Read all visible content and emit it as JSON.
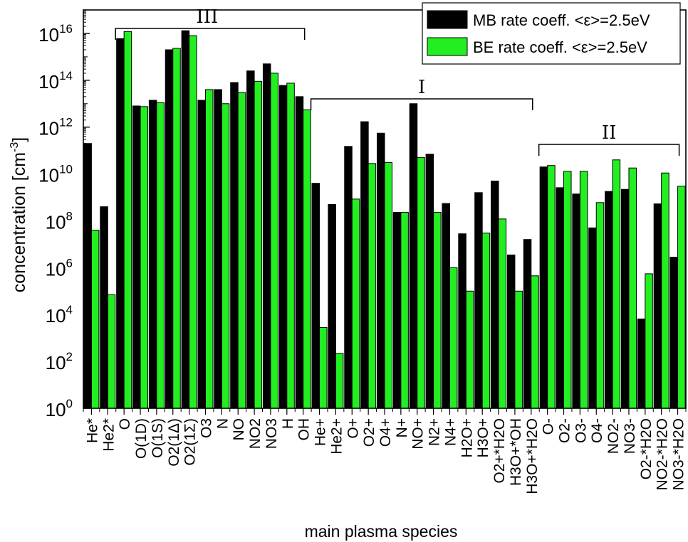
{
  "chart_data": {
    "type": "bar",
    "title": "",
    "xlabel": "main plasma species",
    "ylabel": "concentration [cm^-3]",
    "ylabel_parts": {
      "main": "concentration [cm",
      "sup": "-3",
      "tail": "]"
    },
    "yscale": "log",
    "ylim": [
      1,
      1e+17
    ],
    "ytick_exponents": [
      0,
      2,
      4,
      6,
      8,
      10,
      12,
      14,
      16
    ],
    "ytick_base": "10",
    "categories": [
      "He*",
      "He2*",
      "O",
      "O(1D)",
      "O(1S)",
      "O2(1Δ)",
      "O2(1Σ)",
      "O3",
      "N",
      "NO",
      "NO2",
      "NO3",
      "H",
      "OH",
      "He+",
      "He2+",
      "O+",
      "O2+",
      "O4+",
      "N+",
      "NO+",
      "N2+",
      "N4+",
      "H2O+",
      "H3O+",
      "O2+*H2O",
      "H3O+*OH",
      "H3O+*H2O",
      "O-",
      "O2-",
      "O3-",
      "O4-",
      "NO2-",
      "NO3-",
      "O2-*H2O",
      "NO2-*H2O",
      "NO3-*H2O"
    ],
    "series": [
      {
        "name": "MB rate coeff. <ε>=2.5eV",
        "color": "#000000",
        "values": [
          200000000000.0,
          400000000.0,
          6000000000000000.0,
          8000000000000.0,
          14000000000000.0,
          2000000000000000.0,
          1.3e+16,
          14000000000000.0,
          40000000000000.0,
          80000000000000.0,
          250000000000000.0,
          500000000000000.0,
          60000000000000.0,
          20000000000000.0,
          4000000000.0,
          500000000.0,
          150000000000.0,
          1700000000000.0,
          550000000000.0,
          230000000.0,
          10000000000000.0,
          70000000000.0,
          550000000.0,
          28000000.0,
          1600000000.0,
          5000000000.0,
          3500000.0,
          16000000.0,
          20000000000.0,
          2600000000.0,
          1400000000.0,
          50000000.0,
          1800000000.0,
          2200000000.0,
          6500.0,
          530000000.0,
          2800000.0
        ]
      },
      {
        "name": "BE rate coeff. <ε>=2.5eV",
        "color": "#22ee22",
        "values": [
          40000000.0,
          70000.0,
          1.2e+16,
          7500000000000.0,
          11000000000000.0,
          2300000000000000.0,
          8000000000000000.0,
          40000000000000.0,
          10000000000000.0,
          30000000000000.0,
          90000000000000.0,
          200000000000000.0,
          75000000000000.0,
          5500000000000.0,
          2800.0,
          220.0,
          850000000.0,
          28000000000.0,
          31000000000.0,
          230000000.0,
          50000000000.0,
          230000000.0,
          1000000.0,
          100000.0,
          30000000.0,
          120000000.0,
          100000.0,
          450000.0,
          23000000000.0,
          13000000000.0,
          13000000000.0,
          600000000.0,
          40000000000.0,
          18000000000.0,
          550000.0,
          11000000000.0,
          3000000000.0
        ]
      }
    ],
    "annotations": [
      {
        "label": "III",
        "start_category": "O",
        "end_category": "OH"
      },
      {
        "label": "I",
        "start_category": "He+",
        "end_category": "H3O+*H2O"
      },
      {
        "label": "II",
        "start_category": "O-",
        "end_category": "NO3-*H2O"
      }
    ],
    "legend": {
      "position": "top-right"
    },
    "grid": false
  }
}
